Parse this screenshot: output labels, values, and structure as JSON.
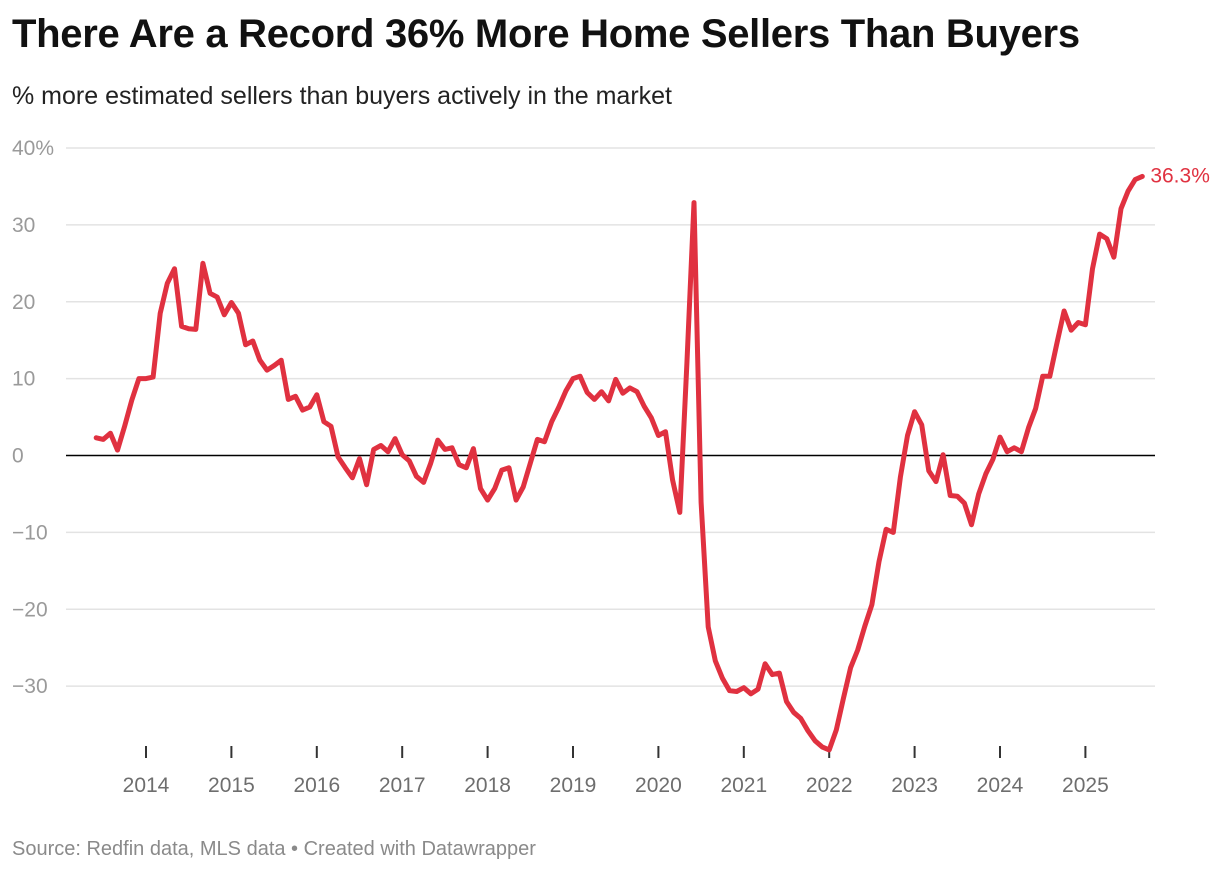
{
  "title": "There Are a Record 36% More Home Sellers Than Buyers",
  "subtitle": "% more estimated sellers than buyers actively in the market",
  "source": "Source: Redfin data, MLS data • Created with Datawrapper",
  "colors": {
    "line": "#e03140",
    "grid": "#e3e3e3",
    "zero": "#000000",
    "tick": "#9a9a9a"
  },
  "chart_data": {
    "type": "line",
    "title": "There Are a Record 36% More Home Sellers Than Buyers",
    "subtitle": "% more estimated sellers than buyers actively in the market",
    "xlabel": "",
    "ylabel": "",
    "ylim": [
      -38,
      40
    ],
    "yticks": [
      40,
      30,
      20,
      10,
      0,
      -10,
      -20,
      -30
    ],
    "ytick_labels": [
      "40%",
      "30",
      "20",
      "10",
      "0",
      "−10",
      "−20",
      "−30"
    ],
    "xticks": [
      "2014",
      "2015",
      "2016",
      "2017",
      "2018",
      "2019",
      "2020",
      "2021",
      "2022",
      "2023",
      "2024",
      "2025"
    ],
    "grid": true,
    "end_label": "36.3%",
    "series": [
      {
        "name": "",
        "values": [
          {
            "x": "2013-06",
            "y": 2.3
          },
          {
            "x": "2013-07",
            "y": 2.1
          },
          {
            "x": "2013-08",
            "y": 2.9
          },
          {
            "x": "2013-09",
            "y": 0.7
          },
          {
            "x": "2013-10",
            "y": 3.8
          },
          {
            "x": "2013-11",
            "y": 7.2
          },
          {
            "x": "2013-12",
            "y": 10.0
          },
          {
            "x": "2014-01",
            "y": 10.0
          },
          {
            "x": "2014-02",
            "y": 10.2
          },
          {
            "x": "2014-03",
            "y": 18.5
          },
          {
            "x": "2014-04",
            "y": 22.4
          },
          {
            "x": "2014-05",
            "y": 24.3
          },
          {
            "x": "2014-06",
            "y": 16.8
          },
          {
            "x": "2014-07",
            "y": 16.5
          },
          {
            "x": "2014-08",
            "y": 16.4
          },
          {
            "x": "2014-09",
            "y": 25.0
          },
          {
            "x": "2014-10",
            "y": 21.1
          },
          {
            "x": "2014-11",
            "y": 20.6
          },
          {
            "x": "2014-12",
            "y": 18.3
          },
          {
            "x": "2015-01",
            "y": 19.9
          },
          {
            "x": "2015-02",
            "y": 18.5
          },
          {
            "x": "2015-03",
            "y": 14.4
          },
          {
            "x": "2015-04",
            "y": 14.9
          },
          {
            "x": "2015-05",
            "y": 12.4
          },
          {
            "x": "2015-06",
            "y": 11.1
          },
          {
            "x": "2015-07",
            "y": 11.7
          },
          {
            "x": "2015-08",
            "y": 12.4
          },
          {
            "x": "2015-09",
            "y": 7.3
          },
          {
            "x": "2015-10",
            "y": 7.7
          },
          {
            "x": "2015-11",
            "y": 5.9
          },
          {
            "x": "2015-12",
            "y": 6.3
          },
          {
            "x": "2016-01",
            "y": 7.9
          },
          {
            "x": "2016-02",
            "y": 4.4
          },
          {
            "x": "2016-03",
            "y": 3.8
          },
          {
            "x": "2016-04",
            "y": -0.2
          },
          {
            "x": "2016-05",
            "y": -1.6
          },
          {
            "x": "2016-06",
            "y": -2.9
          },
          {
            "x": "2016-07",
            "y": -0.4
          },
          {
            "x": "2016-08",
            "y": -3.8
          },
          {
            "x": "2016-09",
            "y": 0.8
          },
          {
            "x": "2016-10",
            "y": 1.3
          },
          {
            "x": "2016-11",
            "y": 0.5
          },
          {
            "x": "2016-12",
            "y": 2.2
          },
          {
            "x": "2017-01",
            "y": 0.1
          },
          {
            "x": "2017-02",
            "y": -0.7
          },
          {
            "x": "2017-03",
            "y": -2.7
          },
          {
            "x": "2017-04",
            "y": -3.5
          },
          {
            "x": "2017-05",
            "y": -1.0
          },
          {
            "x": "2017-06",
            "y": 2.0
          },
          {
            "x": "2017-07",
            "y": 0.8
          },
          {
            "x": "2017-08",
            "y": 1.0
          },
          {
            "x": "2017-09",
            "y": -1.2
          },
          {
            "x": "2017-10",
            "y": -1.6
          },
          {
            "x": "2017-11",
            "y": 0.9
          },
          {
            "x": "2017-12",
            "y": -4.3
          },
          {
            "x": "2018-01",
            "y": -5.8
          },
          {
            "x": "2018-02",
            "y": -4.3
          },
          {
            "x": "2018-03",
            "y": -1.9
          },
          {
            "x": "2018-04",
            "y": -1.6
          },
          {
            "x": "2018-05",
            "y": -5.8
          },
          {
            "x": "2018-06",
            "y": -4.1
          },
          {
            "x": "2018-07",
            "y": -1.0
          },
          {
            "x": "2018-08",
            "y": 2.1
          },
          {
            "x": "2018-09",
            "y": 1.8
          },
          {
            "x": "2018-10",
            "y": 4.4
          },
          {
            "x": "2018-11",
            "y": 6.3
          },
          {
            "x": "2018-12",
            "y": 8.4
          },
          {
            "x": "2019-01",
            "y": 10.0
          },
          {
            "x": "2019-02",
            "y": 10.3
          },
          {
            "x": "2019-03",
            "y": 8.2
          },
          {
            "x": "2019-04",
            "y": 7.3
          },
          {
            "x": "2019-05",
            "y": 8.3
          },
          {
            "x": "2019-06",
            "y": 7.1
          },
          {
            "x": "2019-07",
            "y": 9.9
          },
          {
            "x": "2019-08",
            "y": 8.1
          },
          {
            "x": "2019-09",
            "y": 8.8
          },
          {
            "x": "2019-10",
            "y": 8.3
          },
          {
            "x": "2019-11",
            "y": 6.4
          },
          {
            "x": "2019-12",
            "y": 4.9
          },
          {
            "x": "2020-01",
            "y": 2.6
          },
          {
            "x": "2020-02",
            "y": 3.1
          },
          {
            "x": "2020-03",
            "y": -3.2
          },
          {
            "x": "2020-04",
            "y": -7.4
          },
          {
            "x": "2020-05",
            "y": 12.0
          },
          {
            "x": "2020-06",
            "y": 32.9
          },
          {
            "x": "2020-07",
            "y": -6.1
          },
          {
            "x": "2020-08",
            "y": -22.3
          },
          {
            "x": "2020-09",
            "y": -26.7
          },
          {
            "x": "2020-10",
            "y": -29.0
          },
          {
            "x": "2020-11",
            "y": -30.6
          },
          {
            "x": "2020-12",
            "y": -30.7
          },
          {
            "x": "2021-01",
            "y": -30.2
          },
          {
            "x": "2021-02",
            "y": -31.0
          },
          {
            "x": "2021-03",
            "y": -30.4
          },
          {
            "x": "2021-04",
            "y": -27.1
          },
          {
            "x": "2021-05",
            "y": -28.5
          },
          {
            "x": "2021-06",
            "y": -28.3
          },
          {
            "x": "2021-07",
            "y": -32.0
          },
          {
            "x": "2021-08",
            "y": -33.4
          },
          {
            "x": "2021-09",
            "y": -34.2
          },
          {
            "x": "2021-10",
            "y": -35.8
          },
          {
            "x": "2021-11",
            "y": -37.1
          },
          {
            "x": "2021-12",
            "y": -37.9
          },
          {
            "x": "2022-01",
            "y": -38.3
          },
          {
            "x": "2022-02",
            "y": -35.7
          },
          {
            "x": "2022-03",
            "y": -31.6
          },
          {
            "x": "2022-04",
            "y": -27.6
          },
          {
            "x": "2022-05",
            "y": -25.3
          },
          {
            "x": "2022-06",
            "y": -22.2
          },
          {
            "x": "2022-07",
            "y": -19.4
          },
          {
            "x": "2022-08",
            "y": -13.8
          },
          {
            "x": "2022-09",
            "y": -9.6
          },
          {
            "x": "2022-10",
            "y": -10.0
          },
          {
            "x": "2022-11",
            "y": -2.8
          },
          {
            "x": "2022-12",
            "y": 2.6
          },
          {
            "x": "2023-01",
            "y": 5.7
          },
          {
            "x": "2023-02",
            "y": 4.0
          },
          {
            "x": "2023-03",
            "y": -2.0
          },
          {
            "x": "2023-04",
            "y": -3.4
          },
          {
            "x": "2023-05",
            "y": 0.1
          },
          {
            "x": "2023-06",
            "y": -5.2
          },
          {
            "x": "2023-07",
            "y": -5.3
          },
          {
            "x": "2023-08",
            "y": -6.2
          },
          {
            "x": "2023-09",
            "y": -9.0
          },
          {
            "x": "2023-10",
            "y": -5.0
          },
          {
            "x": "2023-11",
            "y": -2.4
          },
          {
            "x": "2023-12",
            "y": -0.5
          },
          {
            "x": "2024-01",
            "y": 2.4
          },
          {
            "x": "2024-02",
            "y": 0.5
          },
          {
            "x": "2024-03",
            "y": 1.0
          },
          {
            "x": "2024-04",
            "y": 0.5
          },
          {
            "x": "2024-05",
            "y": 3.6
          },
          {
            "x": "2024-06",
            "y": 6.1
          },
          {
            "x": "2024-07",
            "y": 10.3
          },
          {
            "x": "2024-08",
            "y": 10.3
          },
          {
            "x": "2024-09",
            "y": 14.6
          },
          {
            "x": "2024-10",
            "y": 18.8
          },
          {
            "x": "2024-11",
            "y": 16.3
          },
          {
            "x": "2024-12",
            "y": 17.3
          },
          {
            "x": "2025-01",
            "y": 17.0
          },
          {
            "x": "2025-02",
            "y": 24.3
          },
          {
            "x": "2025-03",
            "y": 28.8
          },
          {
            "x": "2025-04",
            "y": 28.2
          },
          {
            "x": "2025-05",
            "y": 25.8
          },
          {
            "x": "2025-06",
            "y": 32.1
          },
          {
            "x": "2025-07",
            "y": 34.4
          },
          {
            "x": "2025-08",
            "y": 35.9
          },
          {
            "x": "2025-09",
            "y": 36.3
          }
        ]
      }
    ]
  }
}
